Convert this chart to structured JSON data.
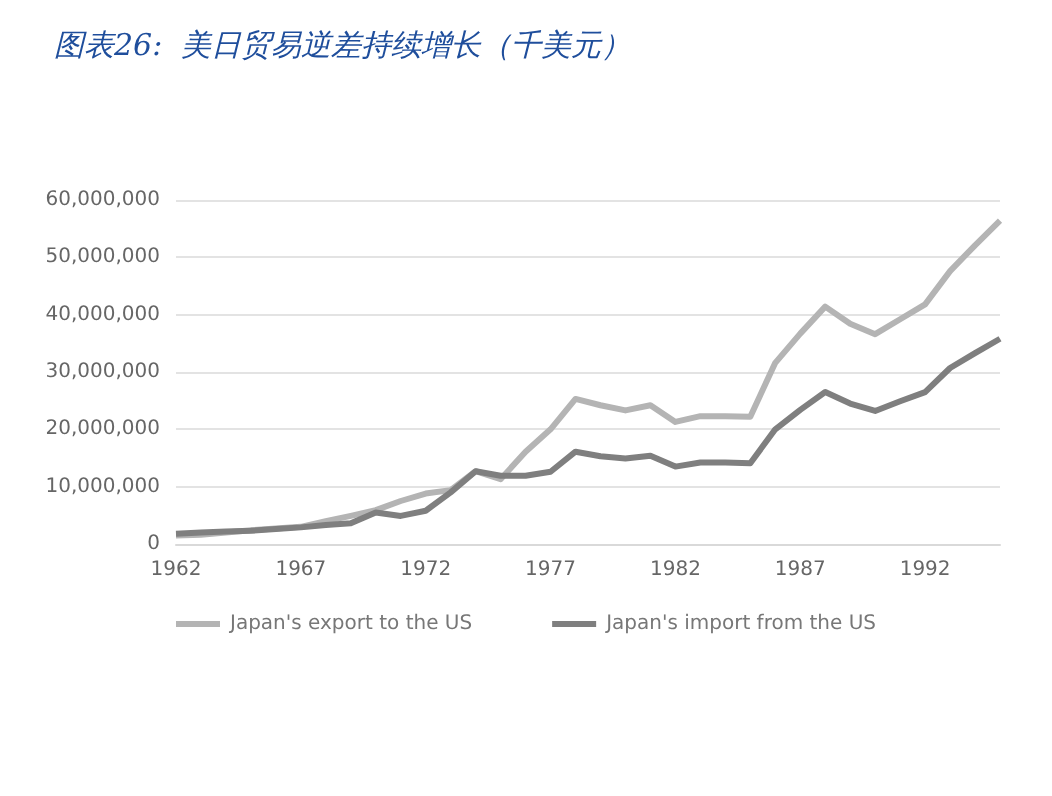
{
  "chart_data": {
    "type": "line",
    "title": "图表26:  美日贸易逆差持续增长（千美元）",
    "categories": [
      "1962",
      null,
      null,
      null,
      null,
      "1967",
      null,
      null,
      null,
      null,
      "1972",
      null,
      null,
      null,
      null,
      "1977",
      null,
      null,
      null,
      null,
      "1982",
      null,
      null,
      null,
      null,
      "1987",
      null,
      null,
      null,
      null,
      "1992",
      null,
      null,
      null
    ],
    "series": [
      {
        "name": "Japan's export to the US",
        "color": "#b4b4b4",
        "values": [
          1500000,
          1600000,
          2000000,
          2400000,
          2700000,
          3000000,
          4000000,
          4900000,
          5900000,
          7500000,
          8800000,
          9400000,
          12700000,
          11300000,
          16100000,
          20000000,
          25300000,
          24200000,
          23300000,
          24200000,
          21300000,
          22300000,
          22300000,
          22200000,
          31600000,
          36700000,
          41400000,
          38400000,
          36600000,
          39200000,
          41800000,
          47600000,
          52100000,
          56400000
        ]
      },
      {
        "name": "Japan's import from the US",
        "color": "#7f7f7f",
        "values": [
          1800000,
          2000000,
          2200000,
          2300000,
          2600000,
          2900000,
          3300000,
          3600000,
          5500000,
          4900000,
          5800000,
          9000000,
          12700000,
          11900000,
          11900000,
          12600000,
          16100000,
          15300000,
          14900000,
          15400000,
          13500000,
          14200000,
          14200000,
          14100000,
          20000000,
          23400000,
          26500000,
          24500000,
          23200000,
          24900000,
          26500000,
          30700000,
          33300000,
          35800000
        ]
      }
    ],
    "ylim": [
      0,
      60000000
    ],
    "yticks": [
      0,
      {
        "value": 10000000,
        "label": "10,000,000"
      },
      {
        "value": 20000000,
        "label": "20,000,000"
      },
      {
        "value": 30000000,
        "label": "30,000,000"
      },
      {
        "value": 40000000,
        "label": "40,000,000"
      },
      {
        "value": 50000000,
        "label": "50,000,000"
      },
      {
        "value": 60000000,
        "label": "60,000,000"
      }
    ],
    "grid": "y",
    "legend": "bottom",
    "marker": "none",
    "line_style": "solid"
  }
}
